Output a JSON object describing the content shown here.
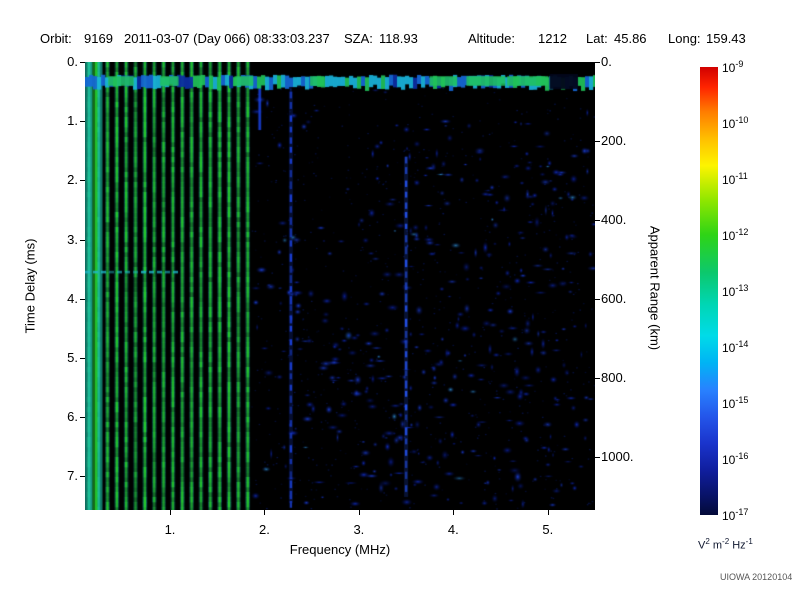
{
  "header": {
    "orbit_label": "Orbit:",
    "orbit_value": "9169",
    "datetime": "2011-03-07 (Day 066) 08:33:03.237",
    "sza_label": "SZA:",
    "sza_value": "118.93",
    "altitude_label": "Altitude:",
    "altitude_value": "1212",
    "lat_label": "Lat:",
    "lat_value": "45.86",
    "long_label": "Long:",
    "long_value": "159.43"
  },
  "footer": {
    "credit": "UIOWA 20120104"
  },
  "chart_data": {
    "type": "heatmap",
    "xlabel": "Frequency (MHz)",
    "ylabel_left": "Time Delay (ms)",
    "ylabel_right": "Apparent Range (km)",
    "x_range_mhz": [
      0.1,
      5.5
    ],
    "x_ticks": [
      1,
      2,
      3,
      4,
      5
    ],
    "x_tick_labels": [
      "1.",
      "2.",
      "3.",
      "4.",
      "5."
    ],
    "y_range_ms": [
      0,
      7.57
    ],
    "y_ticks_ms": [
      0,
      1,
      2,
      3,
      4,
      5,
      6,
      7
    ],
    "y_tick_labels": [
      "0.",
      "1.",
      "2.",
      "3.",
      "4.",
      "5.",
      "6.",
      "7."
    ],
    "y2_ticks_km": [
      0,
      200,
      400,
      600,
      800,
      1000
    ],
    "y2_tick_labels": [
      "0.",
      "200.",
      "400.",
      "600.",
      "800.",
      "1000."
    ],
    "km_per_ms": 150,
    "plot_background": "#000000",
    "colorbar": {
      "tick_base": "10",
      "tick_exponents": [
        "-9",
        "-10",
        "-11",
        "-12",
        "-13",
        "-14",
        "-15",
        "-16",
        "-17"
      ],
      "unit_parts": [
        {
          "b": "V",
          "s": "2"
        },
        {
          "b": "m",
          "s": "-2"
        },
        {
          "b": "Hz",
          "s": "-1"
        }
      ],
      "gradient": [
        {
          "pos": 0.0,
          "color": "#d10000"
        },
        {
          "pos": 0.045,
          "color": "#ff2400"
        },
        {
          "pos": 0.1,
          "color": "#ff7d00"
        },
        {
          "pos": 0.165,
          "color": "#ffc400"
        },
        {
          "pos": 0.22,
          "color": "#fdf400"
        },
        {
          "pos": 0.3,
          "color": "#8ce600"
        },
        {
          "pos": 0.375,
          "color": "#2ed416"
        },
        {
          "pos": 0.46,
          "color": "#0cc86e"
        },
        {
          "pos": 0.53,
          "color": "#00d6b4"
        },
        {
          "pos": 0.6,
          "color": "#00dbe8"
        },
        {
          "pos": 0.66,
          "color": "#00b4f4"
        },
        {
          "pos": 0.72,
          "color": "#2882ff"
        },
        {
          "pos": 0.78,
          "color": "#2456ea"
        },
        {
          "pos": 0.84,
          "color": "#1a34cc"
        },
        {
          "pos": 0.9,
          "color": "#101e9e"
        },
        {
          "pos": 0.96,
          "color": "#081264"
        },
        {
          "pos": 1.0,
          "color": "#030a38"
        }
      ]
    },
    "features": {
      "surface_band": {
        "delay_ms": 0.33,
        "thickness_ms": 0.18,
        "freq_range": [
          0.1,
          5.5
        ],
        "gap_freq_range": [
          5.02,
          5.32
        ],
        "seed": 5,
        "colors": {
          "green": "#21c25a",
          "cyan": "#19b4dc",
          "blue": "#1668d8",
          "dark": "#0c2fa6"
        }
      },
      "harmonic_stripes": {
        "first_mhz": 0.14,
        "spacing_mhz": 0.099,
        "count": 18,
        "core_color": "#25c82d",
        "halo_color": "#1ec3a8",
        "seed": 99
      },
      "dense_low_freq_band": {
        "freq_range": [
          0.1,
          0.27
        ]
      },
      "echo_line": {
        "delay_ms": 3.55,
        "freq_range": [
          0.1,
          1.05
        ],
        "color": "#1fb6c8"
      },
      "vertical_lines": [
        {
          "freq_mhz": 2.28,
          "delay_range_ms": [
            0.5,
            7.45
          ],
          "color": "#1a3fd6",
          "dashed": true
        },
        {
          "freq_mhz": 3.5,
          "delay_range_ms": [
            1.6,
            7.35
          ],
          "color": "#2450e8",
          "dashed": true
        },
        {
          "freq_mhz": 1.95,
          "delay_range_ms": [
            0.4,
            1.15
          ],
          "color": "#1a3fd6",
          "dashed": false
        }
      ],
      "blob_colors": [
        "#0f2bb8",
        "#1a3fd6",
        "#0a1f90",
        "#2e8fd0"
      ],
      "noise_blob_groups": [
        {
          "freq_range": [
            1.9,
            3.5
          ],
          "delay_range_ms": [
            0.4,
            7.5
          ],
          "count": 110,
          "seed": 7
        },
        {
          "freq_range": [
            3.5,
            5.3
          ],
          "delay_range_ms": [
            1.0,
            7.5
          ],
          "count": 260,
          "seed": 11
        },
        {
          "freq_range": [
            2.3,
            3.5
          ],
          "delay_range_ms": [
            4.5,
            7.5
          ],
          "count": 60,
          "seed": 13
        },
        {
          "freq_range": [
            5.25,
            5.5
          ],
          "delay_range_ms": [
            0.5,
            7.5
          ],
          "count": 18,
          "seed": 17
        }
      ],
      "speckle": {
        "count": 700,
        "freq_range": [
          1.86,
          5.5
        ],
        "delay_range_ms": [
          0.35,
          7.56
        ],
        "color": "#0a1c6e",
        "seed": 3
      }
    }
  }
}
